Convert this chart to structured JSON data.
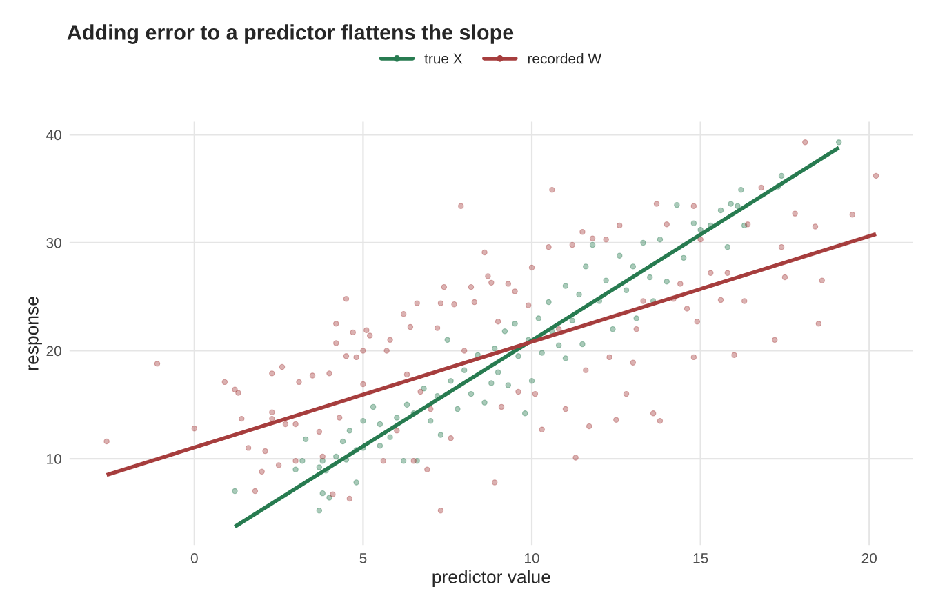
{
  "chart_data": {
    "type": "scatter",
    "title": "Adding error to a predictor flattens the slope",
    "xlabel": "predictor value",
    "ylabel": "response",
    "xlim": [
      -3.7,
      21.3
    ],
    "ylim": [
      2,
      41.2
    ],
    "xticks": [
      0,
      5,
      10,
      15,
      20
    ],
    "yticks": [
      10,
      20,
      30,
      40
    ],
    "grid": true,
    "legend": "top",
    "marker": "circle",
    "series": [
      {
        "name": "true X",
        "color": "#277b50",
        "x": [
          1.2,
          3.0,
          3.2,
          3.3,
          3.7,
          3.7,
          3.8,
          3.8,
          3.9,
          4.0,
          4.2,
          4.4,
          4.5,
          4.6,
          4.8,
          4.8,
          5.0,
          5.0,
          5.3,
          5.5,
          5.5,
          5.8,
          6.0,
          6.2,
          6.3,
          6.5,
          6.6,
          6.8,
          7.0,
          7.2,
          7.3,
          7.5,
          7.6,
          7.8,
          8.0,
          8.2,
          8.4,
          8.6,
          8.8,
          8.9,
          9.0,
          9.2,
          9.3,
          9.5,
          9.6,
          9.8,
          9.9,
          10.0,
          10.2,
          10.3,
          10.5,
          10.6,
          10.8,
          11.0,
          11.0,
          11.2,
          11.4,
          11.5,
          11.6,
          11.8,
          12.0,
          12.2,
          12.4,
          12.6,
          12.8,
          13.0,
          13.1,
          13.3,
          13.5,
          13.6,
          13.8,
          14.0,
          14.3,
          14.5,
          14.8,
          15.0,
          15.3,
          15.6,
          15.8,
          15.9,
          16.1,
          16.2,
          16.3,
          17.3,
          17.4,
          19.1
        ],
        "values": [
          7.0,
          9.0,
          9.8,
          11.8,
          5.2,
          9.2,
          6.8,
          9.8,
          8.9,
          6.4,
          10.2,
          11.6,
          9.9,
          12.6,
          7.8,
          10.8,
          11.0,
          13.5,
          14.8,
          11.2,
          13.2,
          12.0,
          13.8,
          9.8,
          15.0,
          14.2,
          9.8,
          16.5,
          13.5,
          15.8,
          12.2,
          21.0,
          17.2,
          14.6,
          18.2,
          16.0,
          19.6,
          15.2,
          17.0,
          20.2,
          18.0,
          21.8,
          16.8,
          22.5,
          19.5,
          14.2,
          21.0,
          17.2,
          23.0,
          19.8,
          24.5,
          21.8,
          20.5,
          19.3,
          26.0,
          22.8,
          25.2,
          20.6,
          27.8,
          29.8,
          24.6,
          26.5,
          22.0,
          28.8,
          25.6,
          27.8,
          23.0,
          30.0,
          26.8,
          24.6,
          30.3,
          26.4,
          33.5,
          28.6,
          31.8,
          31.2,
          31.6,
          33.0,
          29.6,
          33.6,
          33.4,
          34.9,
          31.6,
          35.2,
          36.2,
          39.3
        ]
      },
      {
        "type": "line",
        "color": "#277b50",
        "marker": "none",
        "x": [
          1.2,
          19.1
        ],
        "values": [
          3.7,
          38.8
        ]
      },
      {
        "name": "recorded W",
        "color": "#a63d3d",
        "x": [
          -2.6,
          -1.1,
          0.0,
          0.9,
          1.2,
          1.3,
          1.4,
          1.6,
          1.8,
          2.0,
          2.1,
          2.3,
          2.3,
          2.3,
          2.5,
          2.6,
          2.7,
          3.0,
          3.0,
          3.1,
          3.5,
          3.7,
          3.8,
          4.0,
          4.1,
          4.2,
          4.2,
          4.3,
          4.5,
          4.5,
          4.6,
          4.7,
          4.8,
          5.0,
          5.0,
          5.1,
          5.2,
          5.6,
          5.7,
          5.8,
          6.0,
          6.2,
          6.3,
          6.4,
          6.5,
          6.6,
          6.7,
          6.9,
          7.0,
          7.2,
          7.3,
          7.3,
          7.4,
          7.6,
          7.7,
          7.9,
          8.0,
          8.2,
          8.3,
          8.6,
          8.7,
          8.8,
          8.9,
          9.0,
          9.1,
          9.3,
          9.5,
          9.6,
          9.9,
          10.0,
          10.1,
          10.3,
          10.5,
          10.6,
          10.8,
          11.0,
          11.2,
          11.3,
          11.5,
          11.6,
          11.7,
          11.8,
          12.2,
          12.3,
          12.5,
          12.6,
          12.8,
          13.0,
          13.1,
          13.3,
          13.6,
          13.7,
          13.8,
          14.0,
          14.2,
          14.4,
          14.6,
          14.8,
          14.8,
          14.9,
          15.0,
          15.3,
          15.6,
          15.8,
          16.0,
          16.3,
          16.4,
          16.8,
          17.2,
          17.4,
          17.5,
          17.8,
          18.1,
          18.4,
          18.5,
          18.6,
          19.5,
          20.2
        ],
        "values": [
          11.6,
          18.8,
          12.8,
          17.1,
          16.4,
          16.1,
          13.7,
          11.0,
          7.0,
          8.8,
          10.7,
          13.7,
          14.3,
          17.9,
          9.4,
          18.5,
          13.2,
          9.8,
          13.2,
          17.1,
          17.7,
          12.5,
          10.2,
          17.9,
          6.7,
          20.7,
          22.5,
          13.8,
          19.5,
          24.8,
          6.3,
          21.7,
          19.4,
          20.0,
          16.9,
          21.9,
          21.4,
          9.8,
          20.0,
          21.0,
          12.6,
          23.4,
          17.8,
          22.2,
          9.8,
          24.4,
          16.2,
          9.0,
          14.6,
          22.1,
          5.2,
          24.4,
          25.9,
          11.9,
          24.3,
          33.4,
          20.0,
          25.9,
          24.5,
          29.1,
          26.9,
          26.3,
          7.8,
          22.7,
          14.8,
          26.2,
          25.5,
          16.2,
          24.2,
          27.7,
          16.0,
          12.7,
          29.6,
          34.9,
          22.0,
          14.6,
          29.8,
          10.1,
          31.0,
          18.2,
          13.0,
          30.4,
          30.3,
          19.4,
          13.6,
          31.6,
          16.0,
          18.9,
          22.0,
          24.6,
          14.2,
          33.6,
          13.5,
          31.7,
          24.8,
          26.2,
          23.9,
          33.4,
          19.4,
          22.7,
          30.3,
          27.2,
          24.7,
          27.2,
          19.6,
          24.6,
          31.7,
          35.1,
          21.0,
          29.6,
          26.8,
          32.7,
          39.3,
          31.5,
          22.5,
          26.5,
          32.6,
          36.2
        ]
      },
      {
        "type": "line",
        "color": "#a63d3d",
        "marker": "none",
        "x": [
          -2.6,
          20.2
        ],
        "values": [
          8.5,
          30.8
        ]
      }
    ]
  }
}
